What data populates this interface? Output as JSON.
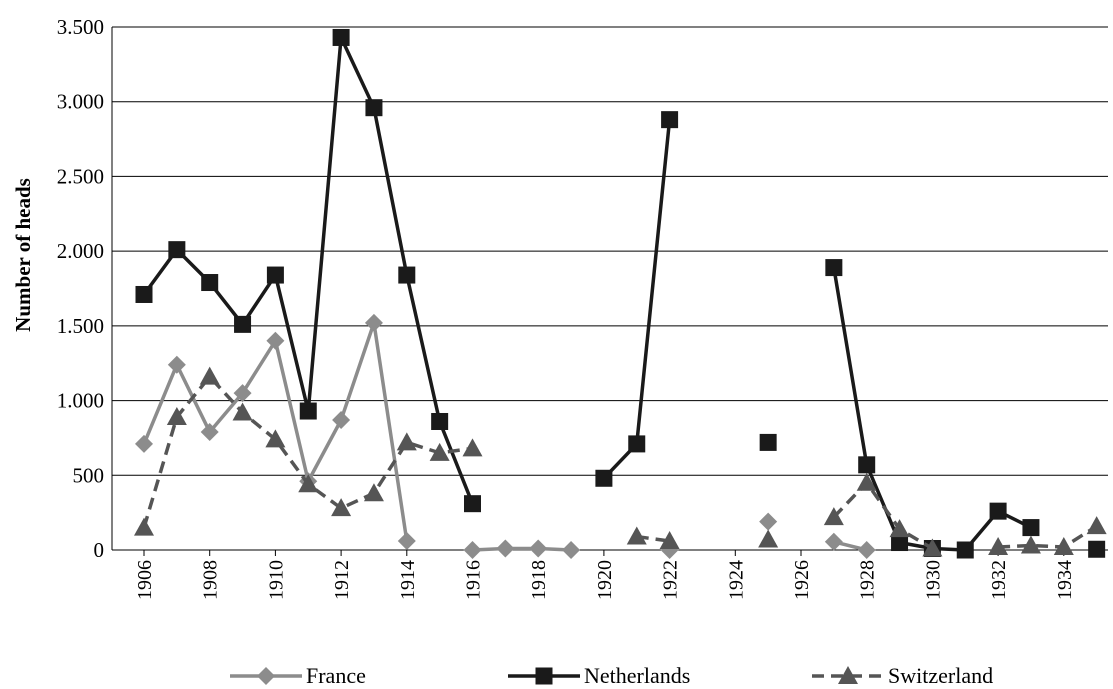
{
  "chart_data": {
    "type": "line",
    "ylabel": "Number of heads",
    "ylim": [
      0,
      3500
    ],
    "yticks": [
      0,
      500,
      1000,
      1500,
      2000,
      2500,
      3000,
      3500
    ],
    "ytick_labels": [
      "0",
      "500",
      "1.000",
      "1.500",
      "2.000",
      "2.500",
      "3.000",
      "3.500"
    ],
    "x_range": [
      1906,
      1935
    ],
    "xticks": [
      1906,
      1908,
      1910,
      1912,
      1914,
      1916,
      1918,
      1920,
      1922,
      1924,
      1926,
      1928,
      1930,
      1932,
      1934
    ],
    "grid": "horizontal",
    "legend_position": "bottom",
    "series": [
      {
        "name": "France",
        "color": "#8c8c8c",
        "marker": "diamond",
        "dash": "solid",
        "points": [
          [
            1906,
            710
          ],
          [
            1907,
            1240
          ],
          [
            1908,
            790
          ],
          [
            1909,
            1050
          ],
          [
            1910,
            1400
          ],
          [
            1911,
            460
          ],
          [
            1912,
            870
          ],
          [
            1913,
            1520
          ],
          [
            1914,
            60
          ],
          [
            null,
            null
          ],
          [
            1916,
            0
          ],
          [
            1917,
            10
          ],
          [
            1918,
            10
          ],
          [
            1919,
            0
          ],
          [
            null,
            null
          ],
          [
            1922,
            0
          ],
          [
            null,
            null
          ],
          [
            1925,
            190
          ],
          [
            null,
            null
          ],
          [
            1927,
            55
          ],
          [
            1928,
            0
          ]
        ]
      },
      {
        "name": "Netherlands",
        "color": "#1a1a1a",
        "marker": "square",
        "dash": "solid",
        "points": [
          [
            1906,
            1710
          ],
          [
            1907,
            2010
          ],
          [
            1908,
            1790
          ],
          [
            1909,
            1510
          ],
          [
            1910,
            1840
          ],
          [
            1911,
            930
          ],
          [
            1912,
            3430
          ],
          [
            1913,
            2960
          ],
          [
            1914,
            1840
          ],
          [
            1915,
            860
          ],
          [
            1916,
            310
          ],
          [
            null,
            null
          ],
          [
            1920,
            480
          ],
          [
            1921,
            710
          ],
          [
            1922,
            2880
          ],
          [
            null,
            null
          ],
          [
            1925,
            720
          ],
          [
            null,
            null
          ],
          [
            1927,
            1890
          ],
          [
            1928,
            570
          ],
          [
            1929,
            50
          ],
          [
            1930,
            10
          ],
          [
            1931,
            0
          ],
          [
            1932,
            260
          ],
          [
            1933,
            150
          ],
          [
            null,
            null
          ],
          [
            1935,
            5
          ]
        ]
      },
      {
        "name": "Switzerland",
        "color": "#555555",
        "marker": "triangle",
        "dash": "dashed",
        "points": [
          [
            1906,
            150
          ],
          [
            1907,
            890
          ],
          [
            1908,
            1160
          ],
          [
            1909,
            920
          ],
          [
            1910,
            740
          ],
          [
            1911,
            440
          ],
          [
            1912,
            280
          ],
          [
            1913,
            380
          ],
          [
            1914,
            720
          ],
          [
            1915,
            650
          ],
          [
            1916,
            680
          ],
          [
            null,
            null
          ],
          [
            1921,
            90
          ],
          [
            1922,
            60
          ],
          [
            null,
            null
          ],
          [
            1925,
            70
          ],
          [
            null,
            null
          ],
          [
            1927,
            220
          ],
          [
            1928,
            450
          ],
          [
            1929,
            140
          ],
          [
            1930,
            10
          ],
          [
            null,
            null
          ],
          [
            1932,
            20
          ],
          [
            1933,
            30
          ],
          [
            1934,
            20
          ],
          [
            1935,
            160
          ]
        ]
      }
    ]
  }
}
